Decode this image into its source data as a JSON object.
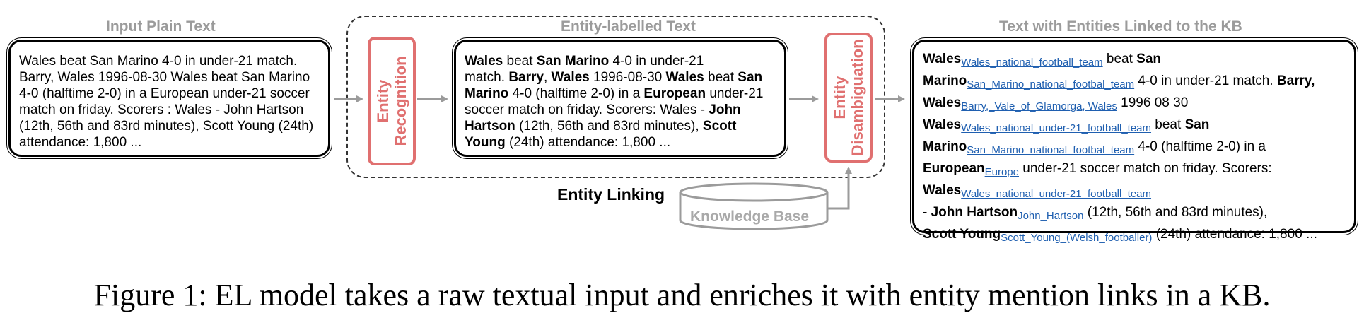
{
  "headings": {
    "input": "Input Plain Text",
    "labelled": "Entity-labelled Text",
    "linked": "Text with Entities Linked to the KB"
  },
  "input_text": [
    "Wales beat San Marino 4-0 in under-21 match.",
    "Barry, Wales 1996-08-30 Wales beat San Marino",
    "4-0 (halftime 2-0) in a European under-21 soccer",
    "match on friday. Scorers : Wales - John Hartson",
    "(12th, 56th and 83rd minutes), Scott Young (24th)",
    "attendance: 1,800 ..."
  ],
  "stages": {
    "recognition": [
      "Entity",
      "Recognition"
    ],
    "disambiguation": [
      "Entity",
      "Disambiguation"
    ]
  },
  "entity_linking_label": "Entity Linking",
  "knowledge_base_label": "Knowledge Base",
  "labelled_text": {
    "l1": [
      "Wales",
      " beat ",
      "San Marino",
      " 4-0 in under-21"
    ],
    "l2": [
      "match. ",
      "Barry",
      ", ",
      "Wales",
      " 1996-08-30 ",
      "Wales",
      " beat ",
      "San"
    ],
    "l3": [
      "Marino",
      " 4-0 (halftime 2-0) in a ",
      "European",
      " under-21"
    ],
    "l4": [
      "soccer match on friday. Scorers: Wales - ",
      "John"
    ],
    "l5": [
      "Hartson",
      " (12th, 56th and 83rd minutes), ",
      "Scott"
    ],
    "l6": [
      "Young",
      " (24th) attendance: 1,800 ..."
    ]
  },
  "linked_text": {
    "l1": [
      "Wales",
      "Wales_national_football_team",
      " beat ",
      "San"
    ],
    "l2": [
      "Marino",
      "San_Marino_national_footbal_team",
      " 4-0 in under-21 match.  ",
      "Barry,"
    ],
    "l3": [
      "Wales",
      "Barry,_Vale_of_Glamorga",
      ", ",
      "Wales",
      " 1996 08 30"
    ],
    "l4": [
      "Wales",
      "Wales_national_under-21_football_team",
      " beat ",
      "San"
    ],
    "l5": [
      "Marino",
      "San_Marino_national_footbal_team",
      " 4-0 (halftime 2-0) in a"
    ],
    "l6": [
      "European",
      "Europe",
      " under-21 soccer match on friday. Scorers:"
    ],
    "l7": [
      "Wales",
      "Wales_national_under-21_football_team"
    ],
    "l8": [
      " - ",
      "John Hartson",
      "John_Hartson",
      " (12th, 56th and 83rd minutes),"
    ],
    "l9": [
      "Scott Young",
      "Scott_Young_(Welsh_footballer)",
      " (24th) attendance: 1,800 ..."
    ]
  },
  "caption": "Figure 1: EL model takes a raw textual input and enriches it with entity mention links in a KB.",
  "colors": {
    "stage_border": "#e07070",
    "heading_gray": "#9b9b9b",
    "arrow_gray": "#9b9b9b",
    "link_blue": "#1f5fb0"
  }
}
